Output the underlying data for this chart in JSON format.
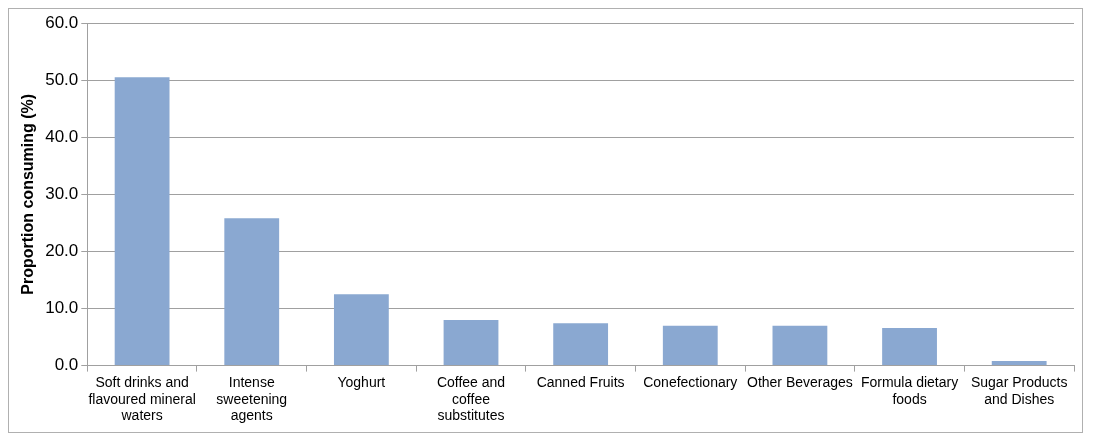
{
  "chart_data": {
    "type": "bar",
    "ylabel": "Proportion consuming (%)",
    "categories": [
      "Soft drinks and flavoured mineral waters",
      "Intense sweetening agents",
      "Yoghurt",
      "Coffee and coffee substitutes",
      "Canned Fruits",
      "Conefectionary",
      "Other Beverages",
      "Formula dietary foods",
      "Sugar Products and Dishes"
    ],
    "values": [
      50.5,
      25.8,
      12.5,
      8.0,
      7.4,
      7.0,
      7.0,
      6.6,
      0.8
    ],
    "color": "#8aa8d1",
    "ylim": [
      0,
      60
    ],
    "yticks": [
      {
        "value": 0,
        "label": "0.0"
      },
      {
        "value": 10,
        "label": "10.0"
      },
      {
        "value": 20,
        "label": "20.0"
      },
      {
        "value": 30,
        "label": "30.0"
      },
      {
        "value": 40,
        "label": "40.0"
      },
      {
        "value": 50,
        "label": "50.0"
      },
      {
        "value": 60,
        "label": "60.0"
      }
    ],
    "grid": "y"
  }
}
